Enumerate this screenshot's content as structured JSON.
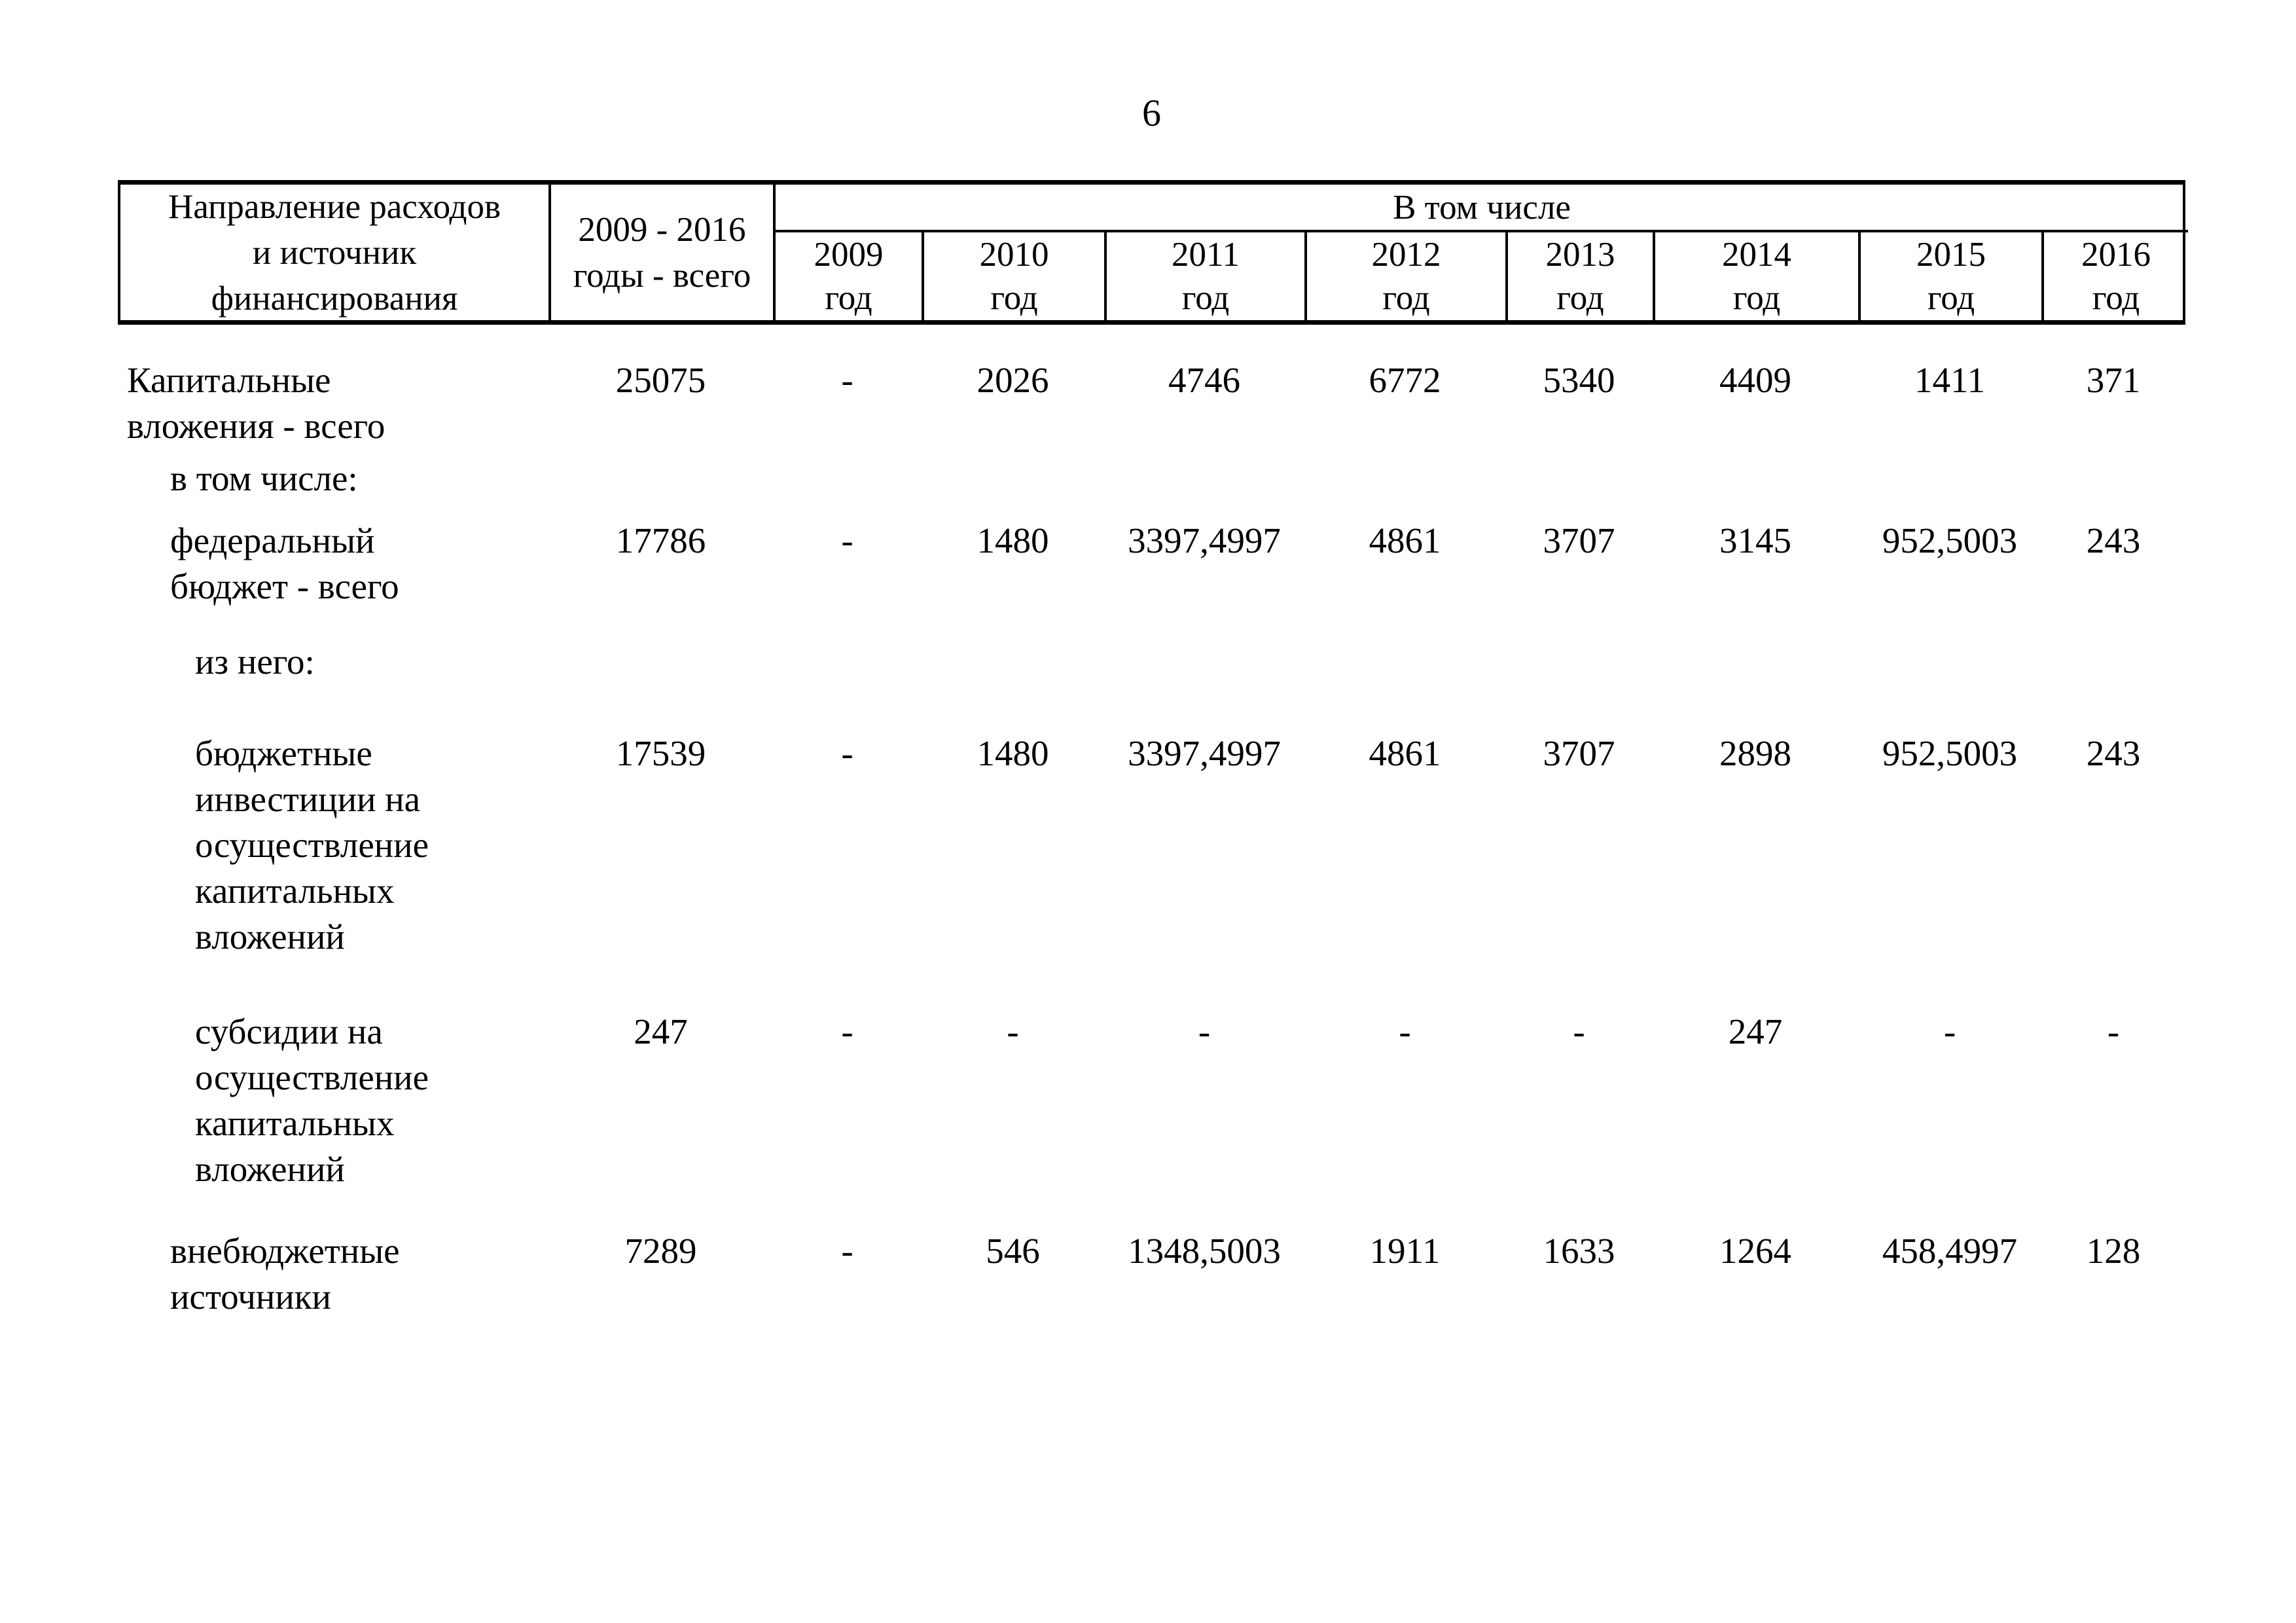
{
  "page": {
    "number": "6"
  },
  "table": {
    "header": {
      "direction": "Направление расходов\nи источник\nфинансирования",
      "total": "2009 - 2016\nгоды - всего",
      "group": "В том числе",
      "years": [
        "2009\nгод",
        "2010\nгод",
        "2011\nгод",
        "2012\nгод",
        "2013\nгод",
        "2014\nгод",
        "2015\nгод",
        "2016\nгод"
      ]
    },
    "rows": [
      {
        "label": "Капитальные\nвложения - всего",
        "values": [
          "25075",
          "-",
          "2026",
          "4746",
          "6772",
          "5340",
          "4409",
          "1411",
          "371"
        ]
      },
      {
        "label": "в том числе:"
      },
      {
        "label": "федеральный\nбюджет - всего",
        "values": [
          "17786",
          "-",
          "1480",
          "3397,4997",
          "4861",
          "3707",
          "3145",
          "952,5003",
          "243"
        ]
      },
      {
        "label": "из него:"
      },
      {
        "label": "бюджетные\nинвестиции на\nосуществление\nкапитальных\nвложений",
        "values": [
          "17539",
          "-",
          "1480",
          "3397,4997",
          "4861",
          "3707",
          "2898",
          "952,5003",
          "243"
        ]
      },
      {
        "label": "субсидии на\nосуществление\nкапитальных\nвложений",
        "values": [
          "247",
          "-",
          "-",
          "-",
          "-",
          "-",
          "247",
          "-",
          "-"
        ]
      },
      {
        "label": "внебюджетные\nисточники",
        "values": [
          "7289",
          "-",
          "546",
          "1348,5003",
          "1911",
          "1633",
          "1264",
          "458,4997",
          "128"
        ]
      }
    ]
  }
}
